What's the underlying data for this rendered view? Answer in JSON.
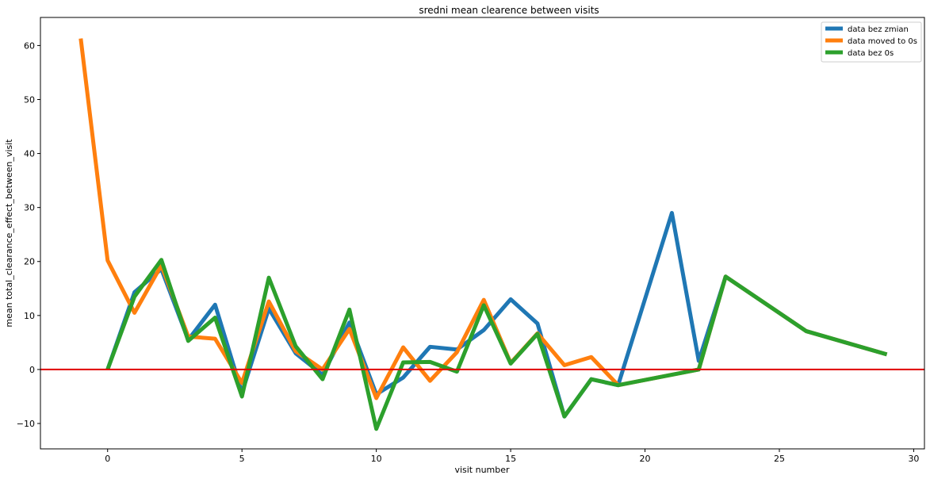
{
  "chart_data": {
    "type": "line",
    "title": "sredni mean clearence between visits",
    "xlabel": "visit number",
    "ylabel": "mean total_clearance_effect_between_visit",
    "xlim": [
      -2.5,
      30.4
    ],
    "ylim": [
      -14.7,
      65.2
    ],
    "xticks": [
      0,
      5,
      10,
      15,
      20,
      25,
      30
    ],
    "yticks": [
      -10,
      0,
      10,
      20,
      30,
      40,
      50,
      60
    ],
    "grid": false,
    "legend_position": "top-right",
    "reference_line": {
      "y": 0,
      "color": "#e00000"
    },
    "series": [
      {
        "name": "data bez zmian",
        "color": "#1f77b4",
        "points": [
          [
            0,
            0
          ],
          [
            1,
            14.3
          ],
          [
            2,
            18.6
          ],
          [
            3,
            5.5
          ],
          [
            4,
            12.0
          ],
          [
            5,
            -4.3
          ],
          [
            6,
            11.3
          ],
          [
            7,
            3.0
          ],
          [
            8,
            -1.0
          ],
          [
            9,
            8.7
          ],
          [
            10,
            -4.6
          ],
          [
            11,
            -1.5
          ],
          [
            12,
            4.2
          ],
          [
            13,
            3.7
          ],
          [
            14,
            7.3
          ],
          [
            15,
            13.0
          ],
          [
            16,
            8.5
          ],
          [
            17,
            -8.7
          ],
          [
            18,
            -1.8
          ],
          [
            19,
            -2.9
          ],
          [
            21,
            29.0
          ],
          [
            22,
            1.6
          ],
          [
            23,
            17.2
          ],
          [
            26,
            7.1
          ],
          [
            29,
            2.8
          ]
        ]
      },
      {
        "name": "data moved to 0s",
        "color": "#ff7f0e",
        "points": [
          [
            -1,
            61.3
          ],
          [
            0,
            20.2
          ],
          [
            1,
            10.5
          ],
          [
            2,
            19.3
          ],
          [
            3,
            6.1
          ],
          [
            4,
            5.7
          ],
          [
            5,
            -2.5
          ],
          [
            6,
            12.6
          ],
          [
            7,
            3.4
          ],
          [
            8,
            0.0
          ],
          [
            9,
            7.5
          ],
          [
            10,
            -5.3
          ],
          [
            11,
            4.1
          ],
          [
            12,
            -2.1
          ],
          [
            13,
            3.2
          ],
          [
            14,
            12.9
          ],
          [
            15,
            1.2
          ],
          [
            16,
            6.7
          ],
          [
            17,
            0.8
          ],
          [
            18,
            2.3
          ],
          [
            19,
            -2.9
          ],
          [
            22,
            0
          ],
          [
            23,
            17.2
          ],
          [
            26,
            7.1
          ],
          [
            29,
            2.8
          ]
        ]
      },
      {
        "name": "data bez 0s",
        "color": "#2ca02c",
        "points": [
          [
            0,
            0
          ],
          [
            1,
            13.5
          ],
          [
            2,
            20.3
          ],
          [
            3,
            5.3
          ],
          [
            4,
            9.6
          ],
          [
            5,
            -5.0
          ],
          [
            6,
            17.0
          ],
          [
            7,
            4.3
          ],
          [
            8,
            -1.8
          ],
          [
            9,
            11.1
          ],
          [
            10,
            -11.0
          ],
          [
            11,
            1.3
          ],
          [
            12,
            1.4
          ],
          [
            13,
            -0.4
          ],
          [
            14,
            11.9
          ],
          [
            15,
            1.1
          ],
          [
            16,
            6.6
          ],
          [
            17,
            -8.7
          ],
          [
            18,
            -1.8
          ],
          [
            19,
            -2.9
          ],
          [
            22,
            0
          ],
          [
            23,
            17.2
          ],
          [
            26,
            7.1
          ],
          [
            29,
            2.8
          ]
        ]
      }
    ]
  }
}
